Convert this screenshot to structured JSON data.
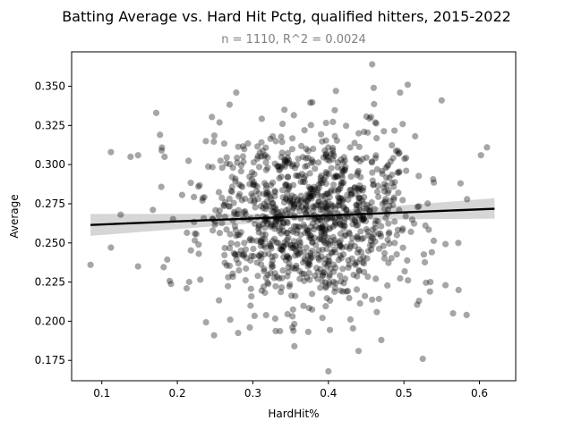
{
  "chart_data": {
    "type": "scatter",
    "title": "Batting Average vs. Hard Hit Pctg, qualified hitters, 2015-2022",
    "subtitle": "n = 1110, R^2 = 0.0024",
    "xlabel": "HardHit%",
    "ylabel": "Average",
    "xlim": [
      0.06,
      0.648
    ],
    "ylim": [
      0.162,
      0.372
    ],
    "xticks": [
      0.1,
      0.2,
      0.3,
      0.4,
      0.5,
      0.6
    ],
    "xtick_labels": [
      "0.1",
      "0.2",
      "0.3",
      "0.4",
      "0.5",
      "0.6"
    ],
    "yticks": [
      0.175,
      0.2,
      0.225,
      0.25,
      0.275,
      0.3,
      0.325,
      0.35
    ],
    "ytick_labels": [
      "0.175",
      "0.200",
      "0.225",
      "0.250",
      "0.275",
      "0.300",
      "0.325",
      "0.350"
    ],
    "grid": false,
    "legend": "none",
    "point_color": "#000000",
    "point_opacity": 0.35,
    "n_points": 1110,
    "regression": {
      "x": [
        0.085,
        0.62
      ],
      "y": [
        0.2615,
        0.2718
      ],
      "ci_upper": [
        0.2685,
        0.2785
      ],
      "ci_lower": [
        0.2545,
        0.2655
      ],
      "ci_mid_upper": 0.2685,
      "ci_mid_lower": 0.2645,
      "line_color": "#000000",
      "band_color": "#bbbbbb"
    },
    "highlighted_points": [
      {
        "x": 0.085,
        "y": 0.236
      },
      {
        "x": 0.112,
        "y": 0.308
      },
      {
        "x": 0.112,
        "y": 0.247
      },
      {
        "x": 0.125,
        "y": 0.268
      },
      {
        "x": 0.138,
        "y": 0.305
      },
      {
        "x": 0.148,
        "y": 0.306
      },
      {
        "x": 0.148,
        "y": 0.235
      },
      {
        "x": 0.172,
        "y": 0.333
      },
      {
        "x": 0.177,
        "y": 0.319
      },
      {
        "x": 0.183,
        "y": 0.305
      },
      {
        "x": 0.278,
        "y": 0.346
      },
      {
        "x": 0.27,
        "y": 0.201
      },
      {
        "x": 0.355,
        "y": 0.184
      },
      {
        "x": 0.4,
        "y": 0.168
      },
      {
        "x": 0.458,
        "y": 0.364
      },
      {
        "x": 0.41,
        "y": 0.347
      },
      {
        "x": 0.46,
        "y": 0.349
      },
      {
        "x": 0.505,
        "y": 0.351
      },
      {
        "x": 0.495,
        "y": 0.346
      },
      {
        "x": 0.525,
        "y": 0.176
      },
      {
        "x": 0.55,
        "y": 0.341
      },
      {
        "x": 0.565,
        "y": 0.205
      },
      {
        "x": 0.583,
        "y": 0.204
      },
      {
        "x": 0.602,
        "y": 0.306
      },
      {
        "x": 0.61,
        "y": 0.311
      },
      {
        "x": 0.572,
        "y": 0.25
      },
      {
        "x": 0.575,
        "y": 0.288
      },
      {
        "x": 0.44,
        "y": 0.181
      },
      {
        "x": 0.47,
        "y": 0.188
      },
      {
        "x": 0.52,
        "y": 0.213
      },
      {
        "x": 0.535,
        "y": 0.225
      },
      {
        "x": 0.555,
        "y": 0.223
      }
    ],
    "cloud": {
      "center_x": 0.375,
      "center_y": 0.266,
      "sd_x": 0.068,
      "sd_y": 0.0275,
      "slope": 0.019
    }
  }
}
